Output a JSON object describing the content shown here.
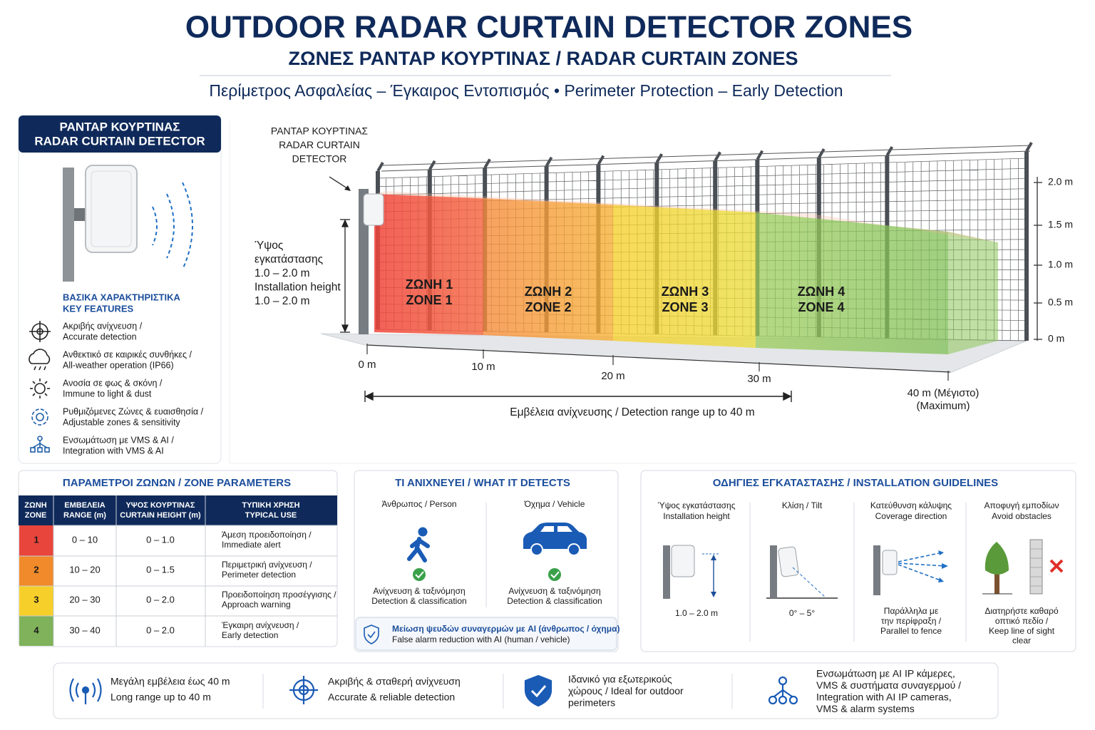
{
  "header": {
    "title": "OUTDOOR RADAR CURTAIN DETECTOR ZONES",
    "subtitle": "ΖΩΝΕΣ ΡΑΝΤΑΡ ΚΟΥΡΤΙΝΑΣ / RADAR CURTAIN ZONES",
    "tagline": "Περίμετρος Ασφαλείας – Έγκαιρος Εντοπισμός • Perimeter Protection – Early Detection"
  },
  "detector_panel": {
    "title": [
      "ΡΑΝΤΑΡ ΚΟΥΡΤΙΝΑΣ",
      "RADAR CURTAIN DETECTOR"
    ],
    "features_title": [
      "ΒΑΣΙΚΑ ΧΑΡΑΚΤΗΡΙΣΤΙΚΑ",
      "KEY FEATURES"
    ],
    "features": [
      [
        "Ακριβής ανίχνευση /",
        "Accurate detection"
      ],
      [
        "Ανθεκτικό σε καιρικές συνθήκες /",
        "All-weather operation (IP66)"
      ],
      [
        "Ανοσία σε φως & σκόνη /",
        "Immune to light & dust"
      ],
      [
        "Ρυθμιζόμενες Ζώνες & ευαισθησία /",
        "Adjustable zones & sensitivity"
      ],
      [
        "Ενσωμάτωση με VMS & AI /",
        "Integration with VMS & AI"
      ]
    ]
  },
  "diagram": {
    "detector_label": [
      "ΡΑΝΤΑΡ ΚΟΥΡΤΙΝΑΣ",
      "RADAR CURTAIN",
      "DETECTOR"
    ],
    "height_label": [
      "Ύψος",
      "εγκατάστασης",
      "1.0 – 2.0 m",
      "Installation height",
      "1.0 – 2.0 m"
    ],
    "zones": [
      [
        "ΖΩΝΗ 1",
        "ZONE 1"
      ],
      [
        "ΖΩΝΗ 2",
        "ZONE 2"
      ],
      [
        "ΖΩΝΗ 3",
        "ZONE 3"
      ],
      [
        "ΖΩΝΗ 4",
        "ZONE 4"
      ]
    ],
    "height_ticks": [
      "2.0 m",
      "1.5 m",
      "1.0 m",
      "0.5 m",
      "0 m"
    ],
    "distance_ticks": [
      "0 m",
      "10 m",
      "20 m",
      "30 m"
    ],
    "max_label": [
      "40 m (Μέγιστο)",
      "(Maximum)"
    ],
    "range_label": "Εμβέλεια ανίχνευσης / Detection range up to 40 m"
  },
  "zone_parameters": {
    "title": "ΠΑΡΑΜΕΤΡΟΙ ΖΩΝΩΝ / ZONE PARAMETERS",
    "headers": [
      [
        "ΖΩΝΗ",
        "ZONE"
      ],
      [
        "ΕΜΒΕΛΕΙΑ",
        "RANGE (m)"
      ],
      [
        "ΥΨΟΣ ΚΟΥΡΤΙΝΑΣ",
        "CURTAIN HEIGHT (m)"
      ],
      [
        "ΤΥΠΙΚΗ ΧΡΗΣΗ",
        "TYPICAL USE"
      ]
    ],
    "rows": [
      {
        "zone": "1",
        "range": "0 – 10",
        "height": "0 – 1.0",
        "use": [
          "Άμεση προειδοποίηση /",
          "Immediate alert"
        ]
      },
      {
        "zone": "2",
        "range": "10 – 20",
        "height": "0 – 1.5",
        "use": [
          "Περιμετρική ανίχνευση /",
          "Perimeter detection"
        ]
      },
      {
        "zone": "3",
        "range": "20 – 30",
        "height": "0 – 2.0",
        "use": [
          "Προειδοποίηση προσέγγισης /",
          "Approach warning"
        ]
      },
      {
        "zone": "4",
        "range": "30 – 40",
        "height": "0 – 2.0",
        "use": [
          "Έγκαιρη ανίχνευση /",
          "Early detection"
        ]
      }
    ]
  },
  "detects": {
    "title": "ΤΙ ΑΝΙΧΝΕΥΕΙ / WHAT IT DETECTS",
    "items": [
      {
        "label": "Άνθρωπος / Person",
        "result": [
          "Ανίχνευση & ταξινόμηση",
          "Detection & classification"
        ]
      },
      {
        "label": "Όχημα / Vehicle",
        "result": [
          "Ανίχνευση & ταξινόμηση",
          "Detection & classification"
        ]
      }
    ],
    "note": [
      "Μείωση ψευδών συναγερμών με AI (άνθρωπος / όχημα)",
      "False alarm reduction with AI (human / vehicle)"
    ]
  },
  "guidelines": {
    "title": "ΟΔΗΓΙΕΣ ΕΓΚΑΤΑΣΤΑΣΗΣ / INSTALLATION GUIDELINES",
    "items": [
      {
        "title": [
          "Ύψος εγκατάστασης",
          "Installation height"
        ],
        "caption": [
          "1.0 – 2.0 m"
        ]
      },
      {
        "title": [
          "Κλίση / Tilt"
        ],
        "caption": [
          "0° – 5°"
        ]
      },
      {
        "title": [
          "Κατεύθυνση κάλυψης",
          "Coverage direction"
        ],
        "caption": [
          "Παράλληλα με",
          "την περίφραξη /",
          "Parallel to fence"
        ]
      },
      {
        "title": [
          "Αποφυγή εμποδίων",
          "Avoid obstacles"
        ],
        "caption": [
          "Διατηρήστε καθαρό",
          "οπτικό πεδίο /",
          "Keep line of sight",
          "clear"
        ]
      }
    ]
  },
  "footer": {
    "items": [
      [
        "Μεγάλη εμβέλεια έως 40 m",
        "Long range up to 40 m"
      ],
      [
        "Ακριβής & σταθερή ανίχνευση",
        "Accurate & reliable detection"
      ],
      [
        "Ιδανικό για εξωτερικούς",
        "χώρους / Ideal for outdoor",
        "perimeters"
      ],
      [
        "Ενσωμάτωση με AI IP κάμερες,",
        "VMS & συστήματα συναγερμού /",
        "Integration with AI IP cameras,",
        "VMS & alarm systems"
      ]
    ]
  }
}
